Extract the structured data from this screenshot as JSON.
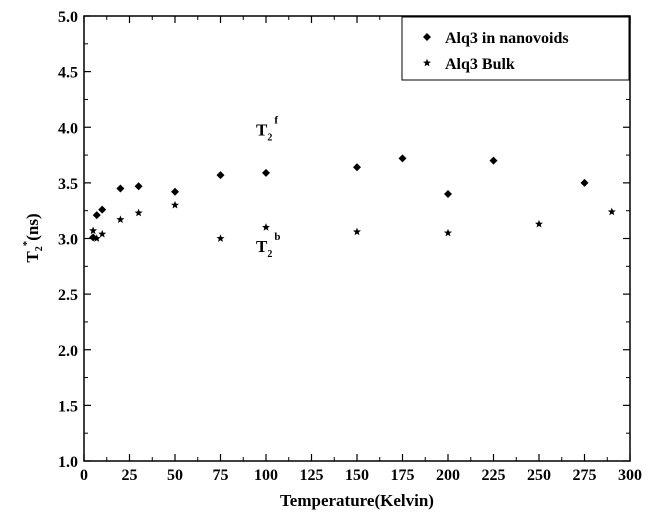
{
  "chart_data": {
    "type": "scatter",
    "xlabel": "Temperature(Kelvin)",
    "ylabel_main": "T",
    "ylabel_sub": "2",
    "ylabel_sup": "*",
    "ylabel_unit": "(ns)",
    "xlim": [
      0,
      300
    ],
    "ylim": [
      1.0,
      5.0
    ],
    "xticks": [
      "0",
      "25",
      "50",
      "75",
      "100",
      "125",
      "150",
      "175",
      "200",
      "225",
      "250",
      "275",
      "300"
    ],
    "yticks": [
      "1.0",
      "1.5",
      "2.0",
      "2.5",
      "3.0",
      "3.5",
      "4.0",
      "4.5",
      "5.0"
    ],
    "grid": false,
    "legend_position": "top-right",
    "series": [
      {
        "name": "Alq3 in nanovoids",
        "marker": "diamond",
        "x": [
          5,
          7,
          10,
          20,
          30,
          50,
          75,
          100,
          150,
          175,
          200,
          225,
          275
        ],
        "y": [
          3.01,
          3.21,
          3.26,
          3.45,
          3.47,
          3.42,
          3.57,
          3.59,
          3.64,
          3.72,
          3.4,
          3.7,
          3.5
        ]
      },
      {
        "name": "Alq3 Bulk",
        "marker": "star",
        "x": [
          5,
          7,
          10,
          20,
          30,
          50,
          75,
          100,
          150,
          200,
          250,
          290
        ],
        "y": [
          3.07,
          3.0,
          3.04,
          3.17,
          3.23,
          3.3,
          3.0,
          3.1,
          3.06,
          3.05,
          3.13,
          3.24
        ]
      }
    ],
    "annotations": [
      {
        "main": "T",
        "sub": "2",
        "sup": "f",
        "x": 100,
        "y": 4.0
      },
      {
        "main": "T",
        "sub": "2",
        "sup": "b",
        "x": 100,
        "y": 2.95
      }
    ]
  }
}
